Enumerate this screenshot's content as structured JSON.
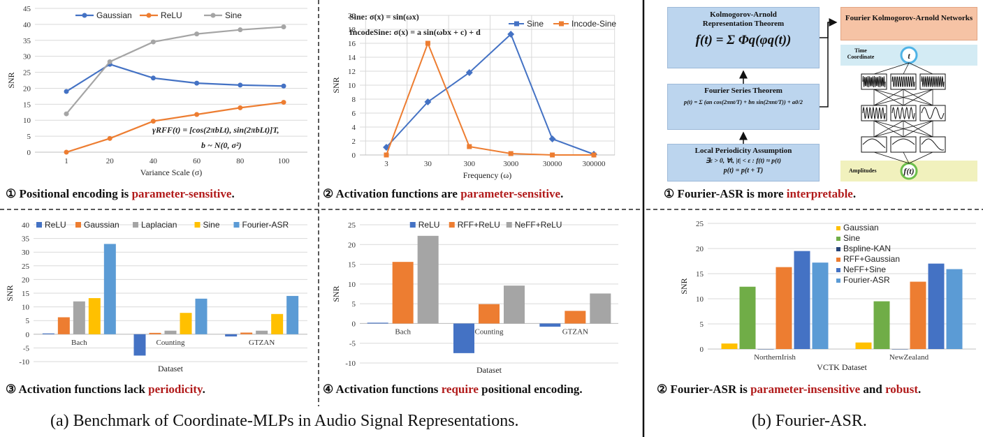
{
  "captions": {
    "a1": {
      "num": "①",
      "pre": " Positional encoding is ",
      "hl": "parameter-sensitive",
      "post": "."
    },
    "a2": {
      "num": "②",
      "pre": " Activation functions are ",
      "hl": "parameter-sensitive",
      "post": "."
    },
    "a3": {
      "num": "③",
      "pre": " Activation functions lack ",
      "hl": "periodicity",
      "post": "."
    },
    "a4": {
      "num": "④",
      "pre": " Activation functions ",
      "hl": "require",
      "post": " positional encoding."
    },
    "b1": {
      "num": "①",
      "pre": "  Fourier-ASR is more ",
      "hl": "interpretable",
      "post": "."
    },
    "b2": {
      "num": "②",
      "pre": " Fourier-ASR is ",
      "hl": "parameter-insensitive",
      "mid": " and ",
      "hl2": "robust",
      "post": "."
    }
  },
  "bottom": {
    "a": "(a) Benchmark of Coordinate-MLPs in Audio Signal Representations.",
    "b": "(b) Fourier-ASR."
  },
  "diagram": {
    "box1_title": "Kolmogorov-Arnold Representation Theorem",
    "box2_title": "Fourier Series Theorem",
    "box3_title": "Local Periodicity Assumption",
    "box4_title": "Fourier Kolmogorov-Arnold Networks",
    "time_label": "Time Coordinate",
    "amp_label": "Amplitudes",
    "t_symbol": "t",
    "ft_symbol": "f(t)",
    "f_kart": "f(t) = Σ Φq(φq(t))",
    "f_sum_top": "2",
    "f_sum_bottom": "q=0",
    "f_fourier": "p(t) = Σ (an cos(2πnt/T) + bn sin(2πnt/T)) + a0/2",
    "f_local1": "∃ε > 0, ∀t, |t| < ε : f(t) ≈ p(t)",
    "f_local2": "p(t) = p(t + T)",
    "colors": {
      "box": "#bcd5ee",
      "kan": "#f6c3a5",
      "time": "#d3ebf4",
      "amp": "#f1f1bd",
      "circle_t": "#4fb3e6",
      "circle_f": "#6dbf4b"
    }
  },
  "chart_data": [
    {
      "id": "c1",
      "type": "line",
      "categories": [
        "1",
        "20",
        "40",
        "60",
        "80",
        "100"
      ],
      "series": [
        {
          "name": "Gaussian",
          "color": "#4472c4",
          "values": [
            19,
            27.5,
            23.2,
            21.6,
            21,
            20.7
          ]
        },
        {
          "name": "ReLU",
          "color": "#ed7d31",
          "values": [
            0,
            4.3,
            9.7,
            11.8,
            13.9,
            15.6
          ]
        },
        {
          "name": "Sine",
          "color": "#a5a5a5",
          "values": [
            12,
            28.3,
            34.5,
            37,
            38.3,
            39.2
          ]
        }
      ],
      "xlabel": "Variance Scale (σ)",
      "ylabel": "SNR",
      "ylim": [
        0,
        45
      ],
      "yticks": [
        0,
        5,
        10,
        15,
        20,
        25,
        30,
        35,
        40,
        45
      ],
      "annotation1": "γRFF(t) = [cos(2πbLt), sin(2πbLt)]T,",
      "annotation2": "b ~ N(0, σ²)",
      "grid": true,
      "legend": "top"
    },
    {
      "id": "c2",
      "type": "line",
      "categories": [
        "3",
        "30",
        "300",
        "3000",
        "30000",
        "300000"
      ],
      "series": [
        {
          "name": "Sine",
          "color": "#4472c4",
          "values": [
            1.1,
            7.6,
            11.8,
            17.3,
            2.3,
            0.1
          ]
        },
        {
          "name": "Incode-Sine",
          "color": "#ed7d31",
          "values": [
            0,
            16,
            1.2,
            0.2,
            0,
            0
          ]
        }
      ],
      "xlabel": "Frequency (ω)",
      "ylabel": "SNR",
      "ylim": [
        0,
        20
      ],
      "yticks": [
        0,
        2,
        4,
        6,
        8,
        10,
        12,
        14,
        16,
        18,
        20
      ],
      "annotation1": "Sine: σ(x) = sin(ωx)",
      "annotation2": "IncodeSine: σ(x) = a sin(ωbx + c) + d",
      "grid": true,
      "legend": "top-right"
    },
    {
      "id": "c3",
      "type": "bar",
      "categories": [
        "Bach",
        "Counting",
        "GTZAN"
      ],
      "series": [
        {
          "name": "ReLU",
          "color": "#4472c4",
          "values": [
            0.3,
            -7.8,
            -0.8
          ]
        },
        {
          "name": "Gaussian",
          "color": "#ed7d31",
          "values": [
            6.2,
            0.5,
            0.6
          ]
        },
        {
          "name": "Laplacian",
          "color": "#a5a5a5",
          "values": [
            12,
            1.3,
            1.3
          ]
        },
        {
          "name": "Sine",
          "color": "#ffc000",
          "values": [
            13.2,
            7.8,
            7.4
          ]
        },
        {
          "name": "Fourier-ASR",
          "color": "#5b9bd5",
          "values": [
            33,
            13,
            14
          ]
        }
      ],
      "xlabel": "Dataset",
      "ylabel": "SNR",
      "ylim": [
        -10,
        40
      ],
      "yticks": [
        -10,
        -5,
        0,
        5,
        10,
        15,
        20,
        25,
        30,
        35,
        40
      ],
      "grid": true,
      "legend": "top"
    },
    {
      "id": "c4",
      "type": "bar",
      "categories": [
        "Bach",
        "Counting",
        "GTZAN"
      ],
      "series": [
        {
          "name": "ReLU",
          "color": "#4472c4",
          "values": [
            0.2,
            -7.5,
            -0.8
          ]
        },
        {
          "name": "RFF+ReLU",
          "color": "#ed7d31",
          "values": [
            15.6,
            4.9,
            3.2
          ]
        },
        {
          "name": "NeFF+ReLU",
          "color": "#a5a5a5",
          "values": [
            22.2,
            9.6,
            7.6
          ]
        }
      ],
      "xlabel": "Dataset",
      "ylabel": "SNR",
      "ylim": [
        -10,
        25
      ],
      "yticks": [
        -10,
        -5,
        0,
        5,
        10,
        15,
        20,
        25
      ],
      "grid": true,
      "legend": "top"
    },
    {
      "id": "c5",
      "type": "bar",
      "categories": [
        "NorthernIrish",
        "NewZealand"
      ],
      "series": [
        {
          "name": "Gaussian",
          "color": "#ffc000",
          "values": [
            1.1,
            1.3
          ]
        },
        {
          "name": "Sine",
          "color": "#70ad47",
          "values": [
            12.4,
            9.5
          ]
        },
        {
          "name": "Bspline-KAN",
          "color": "#264478",
          "values": [
            0,
            0
          ]
        },
        {
          "name": "RFF+Gaussian",
          "color": "#ed7d31",
          "values": [
            16.3,
            13.4
          ]
        },
        {
          "name": "NeFF+Sine",
          "color": "#4472c4",
          "values": [
            19.5,
            17
          ]
        },
        {
          "name": "Fourier-ASR",
          "color": "#5b9bd5",
          "values": [
            17.2,
            15.9
          ]
        }
      ],
      "xlabel": "VCTK Dataset",
      "ylabel": "SNR",
      "ylim": [
        0,
        25
      ],
      "yticks": [
        0,
        5,
        10,
        15,
        20,
        25
      ],
      "grid": true,
      "legend": "left"
    }
  ]
}
